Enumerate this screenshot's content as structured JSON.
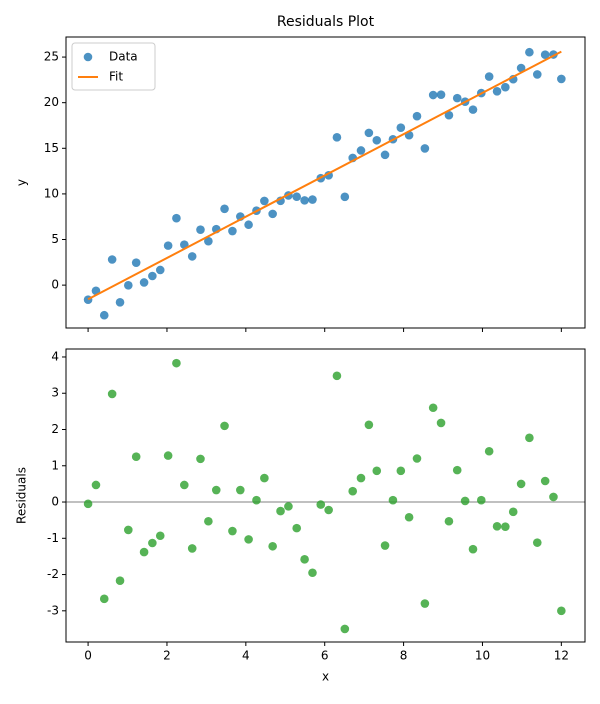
{
  "chart_data": [
    {
      "type": "scatter",
      "title": "Residuals Plot",
      "y_label": "y",
      "xlim": [
        -0.56,
        12.6
      ],
      "xticks": [
        0,
        2,
        4,
        6,
        8,
        10,
        12
      ],
      "show_xtick_labels": false,
      "ylim": [
        -4.7,
        27.2
      ],
      "yticks": [
        0,
        5,
        10,
        15,
        20,
        25
      ],
      "legend": "upper left",
      "series": [
        {
          "name": "Data",
          "mark": "scatter",
          "color": "#1f77b4",
          "x": [
            0,
            0.2,
            0.41,
            0.61,
            0.81,
            1.02,
            1.22,
            1.42,
            1.63,
            1.83,
            2.03,
            2.24,
            2.44,
            2.64,
            2.85,
            3.05,
            3.25,
            3.46,
            3.66,
            3.86,
            4.07,
            4.27,
            4.47,
            4.68,
            4.88,
            5.08,
            5.29,
            5.49,
            5.69,
            5.9,
            6.1,
            6.31,
            6.51,
            6.71,
            6.92,
            7.12,
            7.32,
            7.53,
            7.73,
            7.93,
            8.14,
            8.34,
            8.54,
            8.75,
            8.95,
            9.15,
            9.36,
            9.56,
            9.76,
            9.97,
            10.17,
            10.37,
            10.58,
            10.78,
            10.98,
            11.19,
            11.39,
            11.59,
            11.8,
            12
          ],
          "values": [
            -1.6,
            -0.62,
            -3.3,
            2.81,
            -1.88,
            -0.02,
            2.46,
            0.29,
            1.0,
            1.66,
            4.33,
            7.34,
            4.44,
            3.15,
            6.08,
            4.82,
            6.14,
            8.37,
            5.93,
            7.52,
            6.62,
            8.16,
            9.23,
            7.81,
            9.24,
            9.83,
            9.69,
            9.29,
            9.38,
            11.72,
            12.04,
            16.2,
            9.68,
            13.94,
            14.76,
            16.69,
            15.88,
            14.28,
            15.99,
            17.26,
            16.44,
            18.52,
            14.98,
            20.84,
            20.88,
            18.63,
            20.5,
            20.11,
            19.24,
            21.05,
            22.86,
            21.25,
            21.7,
            22.57,
            23.8,
            25.53,
            23.1,
            25.26,
            25.28,
            22.6
          ]
        },
        {
          "name": "Fit",
          "mark": "line",
          "color": "#ff7f0e",
          "x": [
            0,
            12
          ],
          "values": [
            -1.55,
            25.6
          ]
        }
      ]
    },
    {
      "type": "scatter",
      "x_label": "x",
      "y_label": "Residuals",
      "xlim": [
        -0.56,
        12.6
      ],
      "xticks": [
        0,
        2,
        4,
        6,
        8,
        10,
        12
      ],
      "show_xtick_labels": true,
      "ylim": [
        -3.86,
        4.22
      ],
      "yticks": [
        -3,
        -2,
        -1,
        0,
        1,
        2,
        3,
        4
      ],
      "hline": 0,
      "hline_color": "#808080",
      "series": [
        {
          "mark": "scatter",
          "color": "#2ca02c",
          "x": [
            0,
            0.2,
            0.41,
            0.61,
            0.81,
            1.02,
            1.22,
            1.42,
            1.63,
            1.83,
            2.03,
            2.24,
            2.44,
            2.64,
            2.85,
            3.05,
            3.25,
            3.46,
            3.66,
            3.86,
            4.07,
            4.27,
            4.47,
            4.68,
            4.88,
            5.08,
            5.29,
            5.49,
            5.69,
            5.9,
            6.1,
            6.31,
            6.51,
            6.71,
            6.92,
            7.12,
            7.32,
            7.53,
            7.73,
            7.93,
            8.14,
            8.34,
            8.54,
            8.75,
            8.95,
            9.15,
            9.36,
            9.56,
            9.76,
            9.97,
            10.17,
            10.37,
            10.58,
            10.78,
            10.98,
            11.19,
            11.39,
            11.59,
            11.8,
            12
          ],
          "values": [
            -0.05,
            0.47,
            -2.67,
            2.98,
            -2.17,
            -0.77,
            1.25,
            -1.38,
            -1.13,
            -0.93,
            1.28,
            3.83,
            0.47,
            -1.28,
            1.19,
            -0.53,
            0.33,
            2.1,
            -0.8,
            0.33,
            -1.03,
            0.05,
            0.66,
            -1.22,
            -0.25,
            -0.12,
            -0.72,
            -1.58,
            -1.95,
            -0.07,
            -0.22,
            3.48,
            -3.5,
            0.3,
            0.66,
            2.13,
            0.86,
            -1.2,
            0.05,
            0.86,
            -0.42,
            1.2,
            -2.8,
            2.6,
            2.18,
            -0.53,
            0.88,
            0.03,
            -1.3,
            0.05,
            1.4,
            -0.67,
            -0.68,
            -0.27,
            0.5,
            1.77,
            -1.12,
            0.58,
            0.14,
            -3.0
          ]
        }
      ]
    }
  ]
}
